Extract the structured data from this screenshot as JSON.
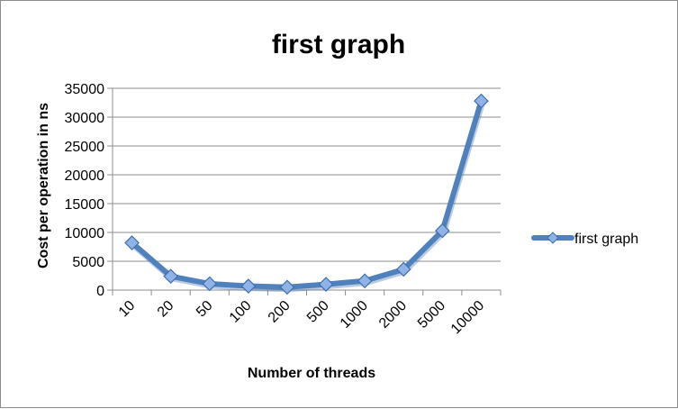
{
  "chart_data": {
    "type": "line",
    "title": "first graph",
    "xlabel": "Number of threads",
    "ylabel": "Cost per operation in ns",
    "categories": [
      "10",
      "20",
      "50",
      "100",
      "200",
      "500",
      "1000",
      "2000",
      "5000",
      "10000"
    ],
    "series": [
      {
        "name": "first graph",
        "values": [
          8200,
          2400,
          1100,
          700,
          500,
          1000,
          1600,
          3600,
          10300,
          32800
        ],
        "color": "#4f81bd"
      }
    ],
    "ylim": [
      0,
      35000
    ],
    "yticks": [
      0,
      5000,
      10000,
      15000,
      20000,
      25000,
      30000,
      35000
    ],
    "grid": true,
    "legend": "right",
    "marker": "diamond"
  }
}
